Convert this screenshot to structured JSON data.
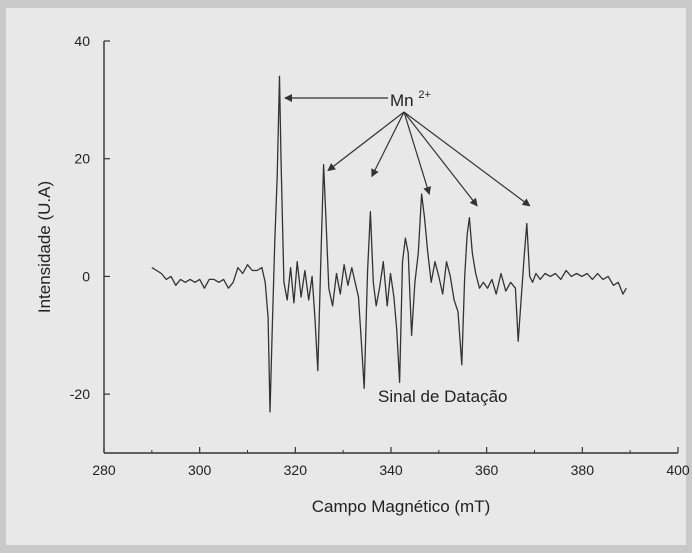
{
  "chart_data": {
    "type": "line",
    "title": "",
    "xlabel": "Campo Magnético (mT)",
    "ylabel": "Intensidade (U.A)",
    "xlim": [
      280,
      400
    ],
    "ylim": [
      -30,
      40
    ],
    "x_ticks": [
      280,
      300,
      320,
      340,
      360,
      380,
      400
    ],
    "y_ticks": [
      -20,
      0,
      20,
      40
    ],
    "grid": false,
    "line_color": "#333333",
    "series": [
      {
        "x": [
          290,
          291,
          292,
          293,
          294,
          295,
          296,
          297,
          298,
          299,
          300,
          301,
          302,
          303,
          304,
          305,
          306,
          307,
          308,
          309,
          310,
          311,
          312,
          313,
          313.7,
          314.3,
          314.7,
          315.2,
          315.7,
          316.2,
          316.7,
          317.0,
          317.6,
          318.3,
          319.0,
          319.7,
          320.4,
          321.2,
          322.0,
          322.8,
          323.5,
          324.1,
          324.7,
          325.3,
          325.9,
          326.4,
          327.0,
          327.8,
          328.6,
          329.4,
          330.2,
          331.0,
          331.8,
          332.5,
          333.2,
          333.8,
          334.4,
          335.1,
          335.7,
          336.3,
          336.9,
          337.6,
          338.4,
          339.2,
          339.9,
          340.6,
          341.2,
          341.8,
          342.4,
          343.0,
          343.6,
          344.3,
          345.0,
          345.7,
          346.4,
          347.0,
          347.7,
          348.4,
          349.2,
          350.0,
          350.8,
          351.6,
          352.4,
          353.2,
          354.0,
          354.8,
          355.4,
          355.9,
          356.4,
          357.0,
          357.7,
          358.5,
          359.3,
          360.2,
          361.1,
          362.0,
          363.0,
          364.0,
          365.0,
          366.0,
          366.6,
          367.2,
          367.8,
          368.4,
          369.0,
          369.6,
          370.3,
          371.2,
          372.2,
          373.3,
          374.4,
          375.5,
          376.6,
          377.7,
          378.8,
          379.9,
          381.0,
          382.1,
          383.2,
          384.3,
          385.4,
          386.5,
          387.5,
          388.5,
          389.2
        ],
        "y": [
          1.5,
          1.0,
          0.5,
          -0.5,
          0.0,
          -1.5,
          -0.5,
          -1.0,
          -0.5,
          -1.0,
          -0.5,
          -2.0,
          -0.5,
          -0.5,
          -1.0,
          -0.5,
          -2.0,
          -1.0,
          1.5,
          0.5,
          2.0,
          1.0,
          1.0,
          1.5,
          -1.0,
          -7.0,
          -23.0,
          -8.0,
          6.0,
          17.0,
          34.0,
          20.0,
          -1.0,
          -4.0,
          1.5,
          -4.5,
          2.5,
          -3.5,
          1.0,
          -4.0,
          0.0,
          -7.0,
          -16.0,
          2.0,
          19.0,
          10.0,
          -2.0,
          -5.0,
          0.5,
          -3.0,
          2.0,
          -1.5,
          1.5,
          -1.0,
          -3.5,
          -11.0,
          -19.0,
          1.0,
          11.0,
          -1.0,
          -5.0,
          -2.0,
          2.5,
          -5.0,
          0.5,
          -3.5,
          -9.0,
          -18.0,
          2.5,
          6.5,
          4.0,
          -10.0,
          -1.0,
          4.0,
          14.0,
          10.0,
          4.0,
          -1.0,
          2.5,
          0.0,
          -3.0,
          2.5,
          0.0,
          -4.0,
          -6.0,
          -15.0,
          0.0,
          7.0,
          10.0,
          4.0,
          0.5,
          -2.0,
          -1.0,
          -2.0,
          -0.5,
          -3.0,
          0.5,
          -2.5,
          -1.0,
          -2.0,
          -11.0,
          -4.0,
          3.0,
          9.0,
          0.0,
          -1.0,
          0.5,
          -0.5,
          0.5,
          0.0,
          0.5,
          -0.5,
          1.0,
          0.0,
          0.5,
          0.0,
          0.5,
          -0.5,
          0.5,
          -0.5,
          0.0,
          -1.5,
          -1.0,
          -3.0,
          -2.0
        ]
      }
    ],
    "annotations": [
      {
        "text": "Mn",
        "superscript": "2+",
        "arrow_targets": [
          [
            317,
            34
          ],
          [
            326,
            18
          ],
          [
            336,
            17
          ],
          [
            348,
            14
          ],
          [
            358,
            12
          ],
          [
            369,
            12
          ]
        ]
      },
      {
        "text": "Sinal de Datação"
      }
    ]
  }
}
